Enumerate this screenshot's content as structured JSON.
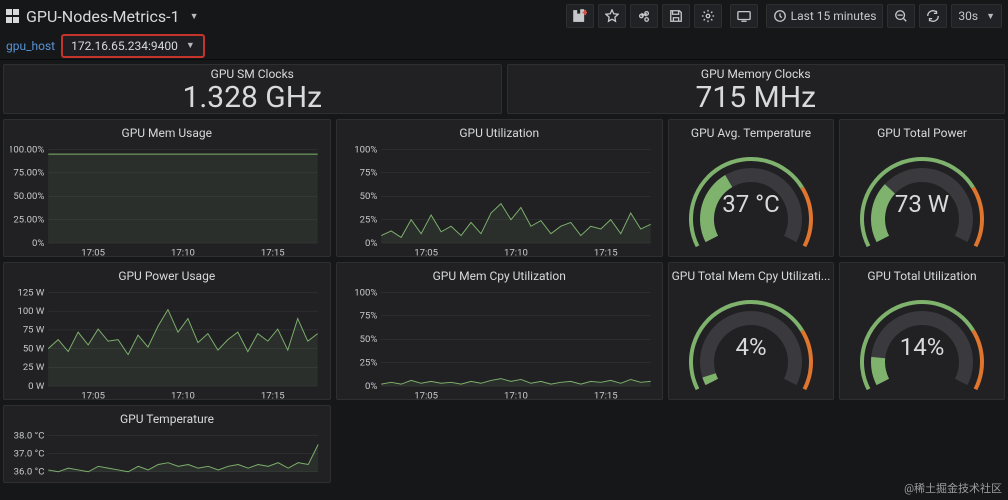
{
  "header": {
    "title": "GPU-Nodes-Metrics-1",
    "time_label": "Last 15 minutes",
    "refresh_label": "30s"
  },
  "variable": {
    "label": "gpu_host",
    "value": "172.16.65.234:9400"
  },
  "stats": {
    "sm_clocks": {
      "title": "GPU SM Clocks",
      "value": "1.328 GHz"
    },
    "mem_clocks": {
      "title": "GPU Memory Clocks",
      "value": "715 MHz"
    }
  },
  "gauges": {
    "temp": {
      "title": "GPU Avg. Temperature",
      "value": "37 °C",
      "percent": 37
    },
    "power": {
      "title": "GPU Total Power",
      "value": "73 W",
      "percent": 30
    },
    "memcpy": {
      "title": "GPU Total Mem Cpy Utilizati...",
      "value": "4%",
      "percent": 4
    },
    "util": {
      "title": "GPU Total Utilization",
      "value": "14%",
      "percent": 14
    }
  },
  "charts": {
    "mem_usage": {
      "title": "GPU Mem Usage",
      "yticks": [
        "100.00%",
        "75.00%",
        "50.00%",
        "25.00%",
        "0%"
      ],
      "xticks": [
        "17:05",
        "17:10",
        "17:15"
      ],
      "ymax": 100,
      "series": [
        95,
        95,
        95,
        95,
        95,
        95,
        95,
        95,
        95,
        95,
        95,
        95,
        95,
        95,
        95,
        95,
        95,
        95,
        95,
        95,
        95,
        95,
        95,
        95,
        95,
        95,
        95,
        95
      ]
    },
    "gpu_util": {
      "title": "GPU Utilization",
      "yticks": [
        "100%",
        "75%",
        "50%",
        "25%",
        "0%"
      ],
      "xticks": [
        "17:05",
        "17:10",
        "17:15"
      ],
      "ymax": 100,
      "series": [
        8,
        13,
        6,
        25,
        10,
        30,
        12,
        18,
        8,
        22,
        10,
        32,
        42,
        25,
        38,
        18,
        24,
        10,
        18,
        22,
        8,
        18,
        15,
        25,
        10,
        32,
        15,
        20
      ]
    },
    "power_usage": {
      "title": "GPU Power Usage",
      "yticks": [
        "125 W",
        "100 W",
        "75 W",
        "50 W",
        "25 W",
        "0 W"
      ],
      "xticks": [
        "17:05",
        "17:10",
        "17:15"
      ],
      "ymax": 125,
      "series": [
        50,
        62,
        46,
        72,
        55,
        76,
        60,
        62,
        42,
        68,
        52,
        80,
        102,
        72,
        90,
        58,
        70,
        48,
        62,
        72,
        46,
        70,
        60,
        76,
        48,
        90,
        60,
        70
      ]
    },
    "memcpy_util": {
      "title": "GPU Mem Cpy Utilization",
      "yticks": [
        "100%",
        "75%",
        "50%",
        "25%",
        "0%"
      ],
      "xticks": [
        "17:05",
        "17:10",
        "17:15"
      ],
      "ymax": 100,
      "series": [
        2,
        4,
        2,
        6,
        3,
        5,
        3,
        4,
        2,
        5,
        3,
        6,
        8,
        5,
        7,
        3,
        5,
        2,
        4,
        5,
        2,
        5,
        4,
        6,
        3,
        7,
        4,
        5
      ]
    },
    "gpu_temp": {
      "title": "GPU Temperature",
      "yticks": [
        "38.0 °C",
        "37.0 °C",
        "36.0 °C"
      ],
      "xticks": [],
      "ymin": 36,
      "ymax": 38,
      "series": [
        36.1,
        36.0,
        36.2,
        36.1,
        36.0,
        36.3,
        36.2,
        36.1,
        36.0,
        36.3,
        36.1,
        36.4,
        36.5,
        36.3,
        36.4,
        36.2,
        36.3,
        36.1,
        36.3,
        36.4,
        36.2,
        36.4,
        36.3,
        36.5,
        36.2,
        36.5,
        36.4,
        37.5
      ]
    }
  },
  "colors": {
    "line": "#7eb26d",
    "gauge_green": "#7eb26d",
    "gauge_orange": "#e0752d",
    "gauge_bg": "#3a3a3e"
  },
  "watermark": "@稀土掘金技术社区"
}
